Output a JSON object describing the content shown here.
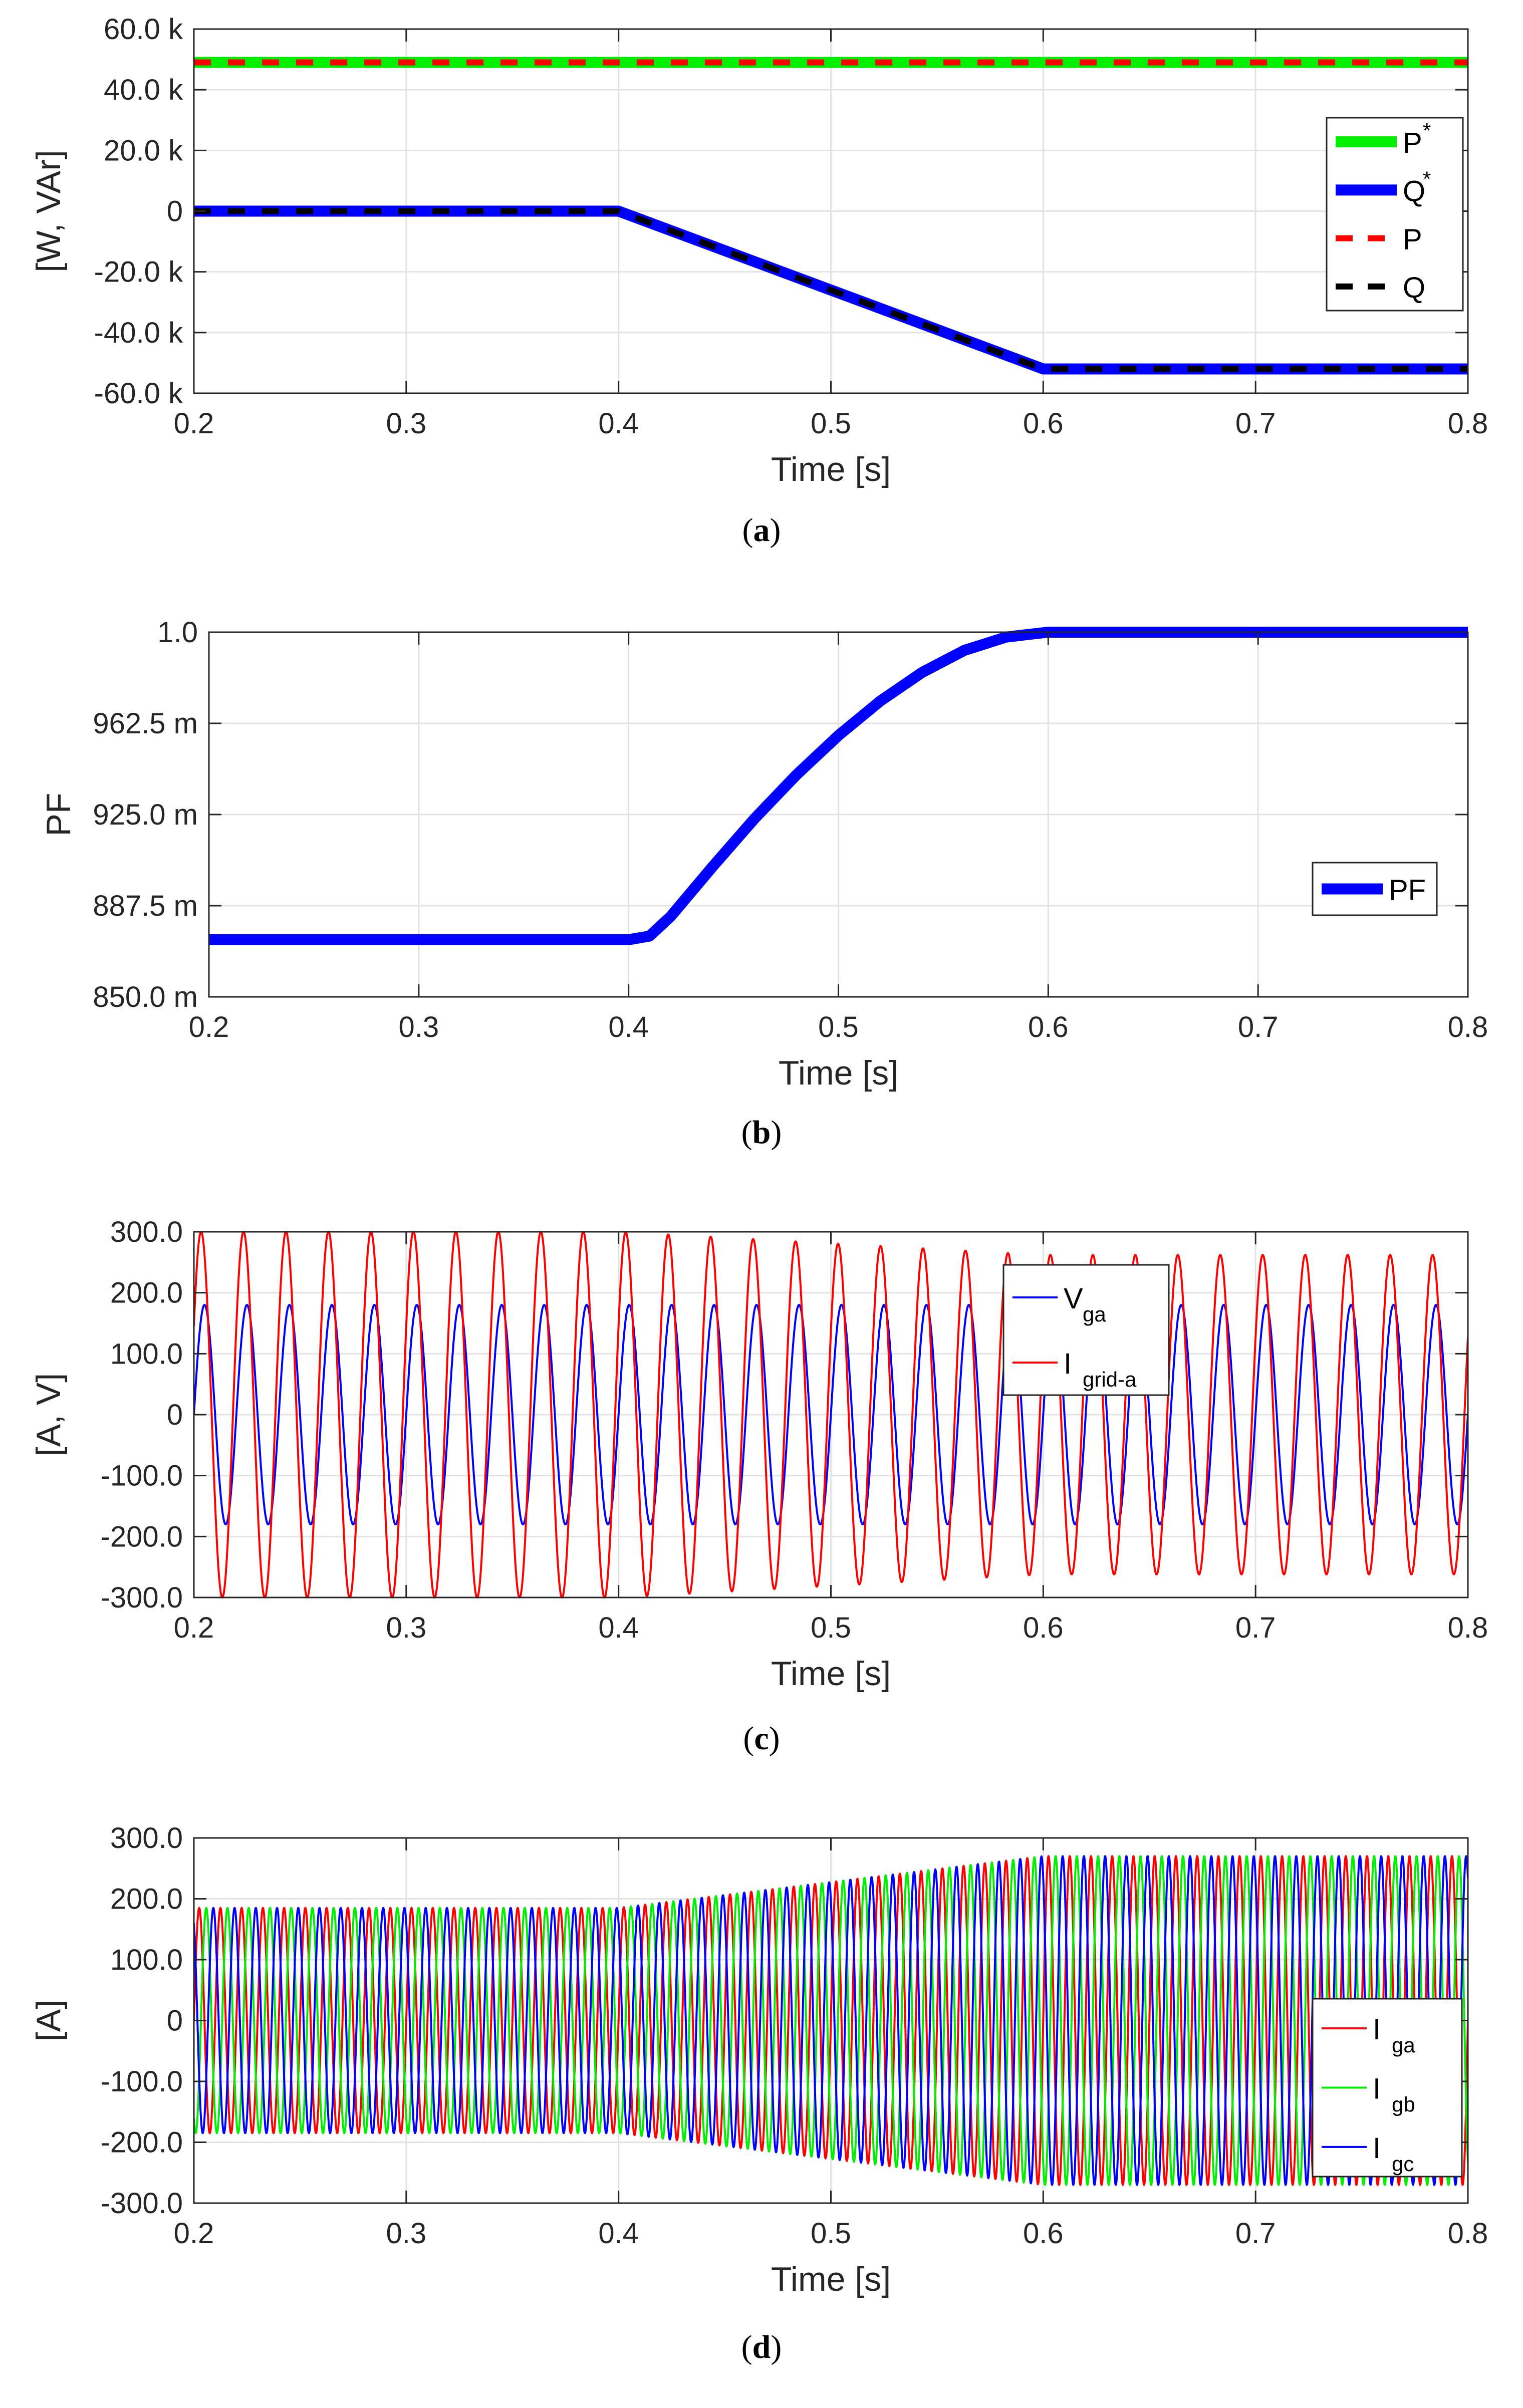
{
  "chart_data": [
    {
      "id": "a",
      "type": "line",
      "caption": "(a)",
      "caption_letter": "a",
      "xlabel": "Time [s]",
      "ylabel": "[W, VAr]",
      "xlim": [
        0.2,
        0.8
      ],
      "ylim": [
        -60000,
        60000
      ],
      "xticks": [
        0.2,
        0.3,
        0.4,
        0.5,
        0.6,
        0.7,
        0.8
      ],
      "xtick_labels": [
        "0.2",
        "0.3",
        "0.4",
        "0.5",
        "0.6",
        "0.7",
        "0.8"
      ],
      "yticks": [
        60000,
        40000,
        20000,
        0,
        -20000,
        -40000,
        -60000
      ],
      "ytick_labels": [
        "60.0 k",
        "40.0 k",
        "20.0 k",
        "0",
        "-20.0 k",
        "-40.0 k",
        "-60.0 k"
      ],
      "grid": true,
      "legend_position": "top-right",
      "series": [
        {
          "name": "P*",
          "label": "P",
          "sup": "*",
          "color": "#00ee00",
          "style": "solid",
          "weight": "thick",
          "x": [
            0.2,
            0.8
          ],
          "values": [
            49000,
            49000
          ]
        },
        {
          "name": "Q*",
          "label": "Q",
          "sup": "*",
          "color": "#0000ff",
          "style": "solid",
          "weight": "thick",
          "x": [
            0.2,
            0.4,
            0.6,
            0.8
          ],
          "values": [
            0,
            0,
            -52000,
            -52000
          ]
        },
        {
          "name": "P",
          "label": "P",
          "color": "#ff0000",
          "style": "dashed",
          "weight": "medium",
          "x": [
            0.2,
            0.8
          ],
          "values": [
            49000,
            49000
          ]
        },
        {
          "name": "Q",
          "label": "Q",
          "color": "#000000",
          "style": "dashed",
          "weight": "medium",
          "x": [
            0.2,
            0.4,
            0.6,
            0.8
          ],
          "values": [
            0,
            0,
            -52000,
            -52000
          ]
        }
      ]
    },
    {
      "id": "b",
      "type": "line",
      "caption": "(b)",
      "caption_letter": "b",
      "xlabel": "Time [s]",
      "ylabel": "PF",
      "xlim": [
        0.2,
        0.8
      ],
      "ylim": [
        0.85,
        1.0
      ],
      "xticks": [
        0.2,
        0.3,
        0.4,
        0.5,
        0.6,
        0.7,
        0.8
      ],
      "xtick_labels": [
        "0.2",
        "0.3",
        "0.4",
        "0.5",
        "0.6",
        "0.7",
        "0.8"
      ],
      "yticks": [
        1.0,
        0.9625,
        0.925,
        0.8875,
        0.85
      ],
      "ytick_labels": [
        "1.0",
        "962.5 m",
        "925.0 m",
        "887.5 m",
        "850.0 m"
      ],
      "grid": true,
      "legend_position": "bottom-right",
      "series": [
        {
          "name": "PF",
          "label": "PF",
          "color": "#0000ff",
          "style": "solid",
          "weight": "thick",
          "x": [
            0.2,
            0.4,
            0.41,
            0.42,
            0.44,
            0.46,
            0.48,
            0.5,
            0.52,
            0.54,
            0.56,
            0.58,
            0.6,
            0.8
          ],
          "values": [
            0.8735,
            0.8735,
            0.875,
            0.883,
            0.9035,
            0.9233,
            0.9413,
            0.9575,
            0.9717,
            0.9835,
            0.9925,
            0.998,
            1.0,
            1.0
          ]
        }
      ]
    },
    {
      "id": "c",
      "type": "line",
      "caption": "(c)",
      "caption_letter": "c",
      "xlabel": "Time [s]",
      "ylabel": "[A, V]",
      "xlim": [
        0.2,
        0.8
      ],
      "ylim": [
        -300,
        300
      ],
      "xticks": [
        0.2,
        0.3,
        0.4,
        0.5,
        0.6,
        0.7,
        0.8
      ],
      "xtick_labels": [
        "0.2",
        "0.3",
        "0.4",
        "0.5",
        "0.6",
        "0.7",
        "0.8"
      ],
      "yticks": [
        300,
        200,
        100,
        0,
        -100,
        -200,
        -300
      ],
      "ytick_labels": [
        "300.0",
        "200.0",
        "100.0",
        "0",
        "-100.0",
        "-200.0",
        "-300.0"
      ],
      "grid": true,
      "legend_position": "top-right",
      "frequency_hz": 50,
      "series": [
        {
          "name": "Vga",
          "label": "V",
          "sub": "ga",
          "color": "#0000ff",
          "amplitude": [
            [
              0.2,
              180
            ],
            [
              0.8,
              180
            ]
          ],
          "phase_deg": 0
        },
        {
          "name": "Igrid-a",
          "label": "I",
          "sub": "grid-a",
          "color": "#ff0000",
          "amplitude": [
            [
              0.2,
              300
            ],
            [
              0.4,
              300
            ],
            [
              0.6,
              262
            ],
            [
              0.8,
              262
            ]
          ],
          "phase_deg": 29
        }
      ]
    },
    {
      "id": "d",
      "type": "line",
      "caption": "(d)",
      "caption_letter": "d",
      "xlabel": "Time [s]",
      "ylabel": "[A]",
      "xlim": [
        0.2,
        0.8
      ],
      "ylim": [
        -300,
        300
      ],
      "xticks": [
        0.2,
        0.3,
        0.4,
        0.5,
        0.6,
        0.7,
        0.8
      ],
      "xtick_labels": [
        "0.2",
        "0.3",
        "0.4",
        "0.5",
        "0.6",
        "0.7",
        "0.8"
      ],
      "yticks": [
        300,
        200,
        100,
        0,
        -100,
        -200,
        -300
      ],
      "ytick_labels": [
        "300.0",
        "200.0",
        "100.0",
        "0",
        "-100.0",
        "-200.0",
        "-300.0"
      ],
      "grid": true,
      "legend_position": "right",
      "frequency_hz": 100,
      "series": [
        {
          "name": "Iga",
          "label": "I",
          "sub": "ga",
          "color": "#ff0000",
          "amplitude": [
            [
              0.2,
              185
            ],
            [
              0.4,
              185
            ],
            [
              0.6,
              270
            ],
            [
              0.8,
              270
            ]
          ],
          "phase_deg": 0
        },
        {
          "name": "Igb",
          "label": "I",
          "sub": "gb",
          "color": "#00ee00",
          "amplitude": [
            [
              0.2,
              185
            ],
            [
              0.4,
              185
            ],
            [
              0.6,
              270
            ],
            [
              0.8,
              270
            ]
          ],
          "phase_deg": -120
        },
        {
          "name": "Igc",
          "label": "I",
          "sub": "gc",
          "color": "#0000ff",
          "amplitude": [
            [
              0.2,
              185
            ],
            [
              0.4,
              185
            ],
            [
              0.6,
              270
            ],
            [
              0.8,
              270
            ]
          ],
          "phase_deg": 120
        }
      ]
    }
  ]
}
